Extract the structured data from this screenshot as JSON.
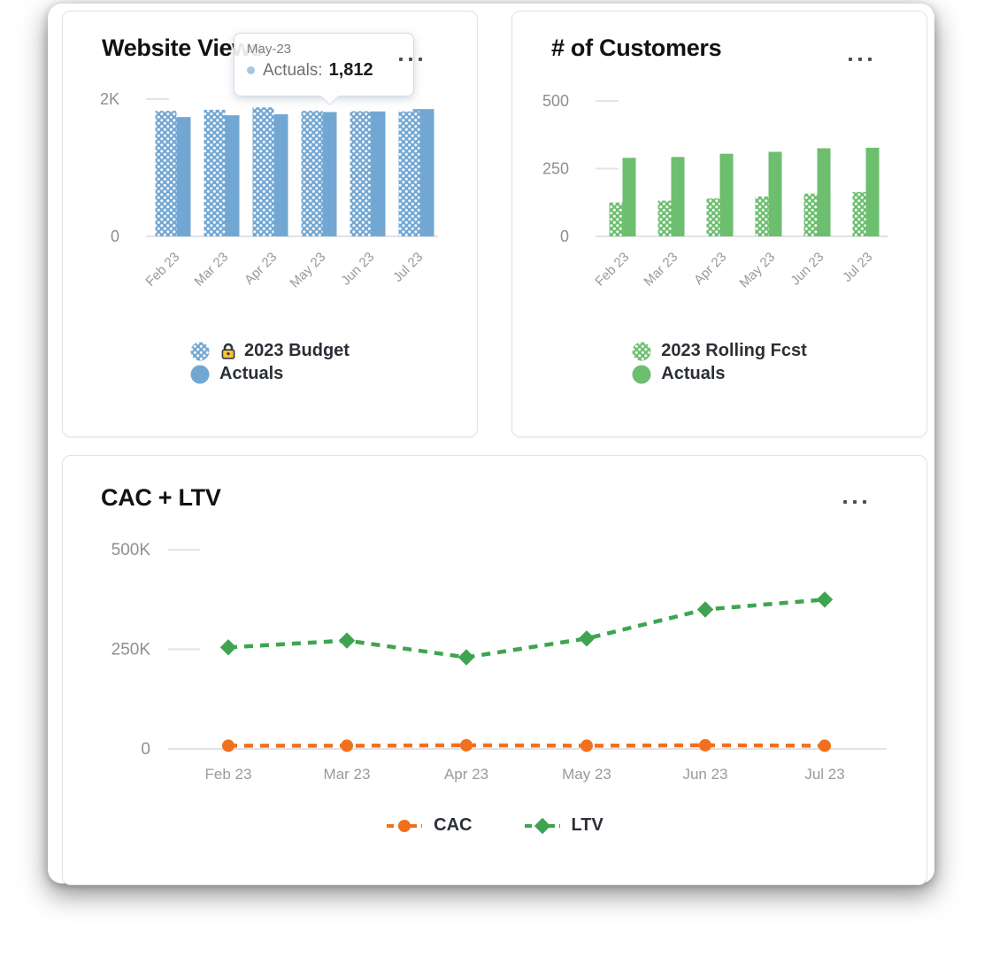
{
  "ui": {
    "tooltip": {
      "date": "May-23",
      "series_label": "Actuals:",
      "value": "1,812"
    },
    "menu_icon": "ellipsis-menu",
    "colors": {
      "blue_series": "#72a7d3",
      "green_series": "#6dbe6f",
      "orange_line": "#f1701e",
      "green_line": "#3ea450",
      "axis_label": "#8f8f8f",
      "category_label": "#9a9a9a"
    }
  },
  "chart_data": [
    {
      "type": "bar",
      "title": "Website Views",
      "categories": [
        "Feb 23",
        "Mar 23",
        "Apr 23",
        "May 23",
        "Jun 23",
        "Jul 23"
      ],
      "series": [
        {
          "name": "2023 Budget",
          "locked": true,
          "pattern": "dots",
          "color": "#72a7d3",
          "values": [
            1830,
            1845,
            1880,
            1830,
            1825,
            1820
          ]
        },
        {
          "name": "Actuals",
          "pattern": null,
          "color": "#72a7d3",
          "values": [
            1740,
            1765,
            1780,
            1812,
            1820,
            1855
          ]
        }
      ],
      "ylim": [
        0,
        2000
      ],
      "yticks": [
        {
          "label": "2K",
          "value": 2000
        },
        {
          "label": "0",
          "value": 0
        }
      ],
      "legend_position": "bottom",
      "grid": "tick-stubs"
    },
    {
      "type": "bar",
      "title": "# of Customers",
      "categories": [
        "Feb 23",
        "Mar 23",
        "Apr 23",
        "May 23",
        "Jun 23",
        "Jul 23"
      ],
      "series": [
        {
          "name": "2023 Rolling Fcst",
          "locked": false,
          "pattern": "dots",
          "color": "#6dbe6f",
          "values": [
            125,
            132,
            140,
            147,
            158,
            164
          ]
        },
        {
          "name": "Actuals",
          "pattern": null,
          "color": "#6dbe6f",
          "values": [
            290,
            293,
            305,
            312,
            325,
            327
          ]
        }
      ],
      "ylim": [
        0,
        500
      ],
      "yticks": [
        {
          "label": "500",
          "value": 500
        },
        {
          "label": "250",
          "value": 250
        },
        {
          "label": "0",
          "value": 0
        }
      ],
      "legend_position": "bottom",
      "grid": "tick-stubs"
    },
    {
      "type": "line",
      "title": "CAC + LTV",
      "categories": [
        "Feb 23",
        "Mar 23",
        "Apr 23",
        "May 23",
        "Jun 23",
        "Jul 23"
      ],
      "series": [
        {
          "name": "CAC",
          "color": "#f1701e",
          "marker": "circle",
          "dash": true,
          "values": [
            8000,
            8000,
            9000,
            8000,
            9000,
            8000
          ]
        },
        {
          "name": "LTV",
          "color": "#3ea450",
          "marker": "diamond",
          "dash": true,
          "values": [
            255000,
            272000,
            230000,
            277000,
            350000,
            375000
          ]
        }
      ],
      "ylim": [
        0,
        500000
      ],
      "yticks": [
        {
          "label": "500K",
          "value": 500000
        },
        {
          "label": "250K",
          "value": 250000
        },
        {
          "label": "0",
          "value": 0
        }
      ],
      "legend_position": "bottom",
      "grid": "tick-stubs"
    }
  ]
}
